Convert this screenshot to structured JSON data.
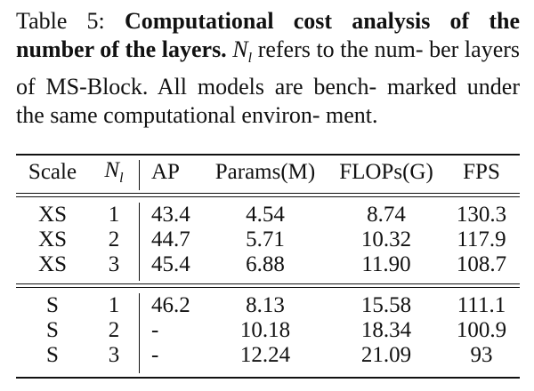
{
  "caption": {
    "label": "Table 5:",
    "title": "Computational cost analysis of the number of the layers.",
    "symbol": "N",
    "symbol_sub": "l",
    "body_line1_rest": " refers to the num-",
    "body_line2": "ber layers of MS-Block. All models are bench-",
    "body_line3": "marked under the same computational environ-",
    "body_line4": "ment."
  },
  "table": {
    "headers": {
      "scale": "Scale",
      "nl_symbol": "N",
      "nl_sub": "l",
      "ap": "AP",
      "params": "Params(M)",
      "flops": "FLOPs(G)",
      "fps": "FPS"
    },
    "group1": [
      {
        "scale": "XS",
        "nl": "1",
        "ap": "43.4",
        "params": "4.54",
        "flops": "8.74",
        "fps": "130.3"
      },
      {
        "scale": "XS",
        "nl": "2",
        "ap": "44.7",
        "params": "5.71",
        "flops": "10.32",
        "fps": "117.9"
      },
      {
        "scale": "XS",
        "nl": "3",
        "ap": "45.4",
        "params": "6.88",
        "flops": "11.90",
        "fps": "108.7"
      }
    ],
    "group2": [
      {
        "scale": "S",
        "nl": "1",
        "ap": "46.2",
        "params": "8.13",
        "flops": "15.58",
        "fps": "111.1"
      },
      {
        "scale": "S",
        "nl": "2",
        "ap": "-",
        "params": "10.18",
        "flops": "18.34",
        "fps": "100.9"
      },
      {
        "scale": "S",
        "nl": "3",
        "ap": "-",
        "params": "12.24",
        "flops": "21.09",
        "fps": "93"
      }
    ]
  }
}
